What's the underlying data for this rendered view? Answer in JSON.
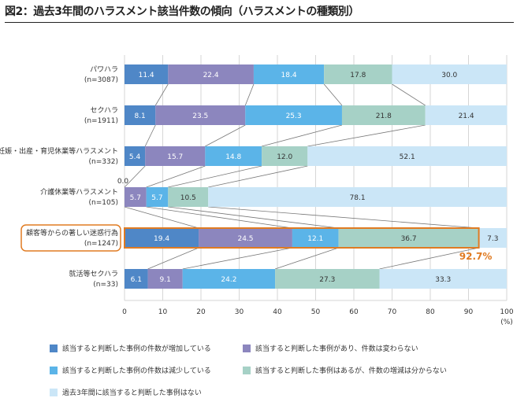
{
  "title": "図2：過去3年間のハラスメント該当件数の傾向（ハラスメントの種類別）",
  "chart_data": {
    "type": "bar",
    "orientation": "horizontal",
    "stacked": true,
    "title": "図2：過去3年間のハラスメント該当件数の傾向（ハラスメントの種類別）",
    "xlabel": "(%)",
    "ylabel": "",
    "xlim": [
      0,
      100
    ],
    "xticks": [
      "0",
      "10",
      "20",
      "30",
      "40",
      "50",
      "60",
      "70",
      "80",
      "90",
      "100"
    ],
    "grid": true,
    "categories": [
      {
        "name": "パワハラ",
        "n": "(n=3087)"
      },
      {
        "name": "セクハラ",
        "n": "(n=1911)"
      },
      {
        "name": "妊娠・出産・育児休業等ハラスメント",
        "n": "(n=332)"
      },
      {
        "name": "介護休業等ハラスメント",
        "n": "(n=105)"
      },
      {
        "name": "顧客等からの著しい迷惑行為",
        "n": "(n=1247)",
        "highlighted": true
      },
      {
        "name": "就活等セクハラ",
        "n": "(n=33)"
      }
    ],
    "series": [
      {
        "name": "該当すると判断した事例の件数が増加している",
        "color": "#4f87c7",
        "label_color": "#ffffff",
        "values": [
          11.4,
          8.1,
          5.4,
          0.0,
          19.4,
          6.1
        ]
      },
      {
        "name": "該当すると判断した事例があり、件数は変わらない",
        "color": "#8c86be",
        "label_color": "#ffffff",
        "values": [
          22.4,
          23.5,
          15.7,
          5.7,
          24.5,
          9.1
        ]
      },
      {
        "name": "該当すると判断した事例の件数は減少している",
        "color": "#5bb4e8",
        "label_color": "#ffffff",
        "values": [
          18.4,
          25.3,
          14.8,
          5.7,
          12.1,
          24.2
        ]
      },
      {
        "name": "該当すると判断した事例はあるが、件数の増減は分からない",
        "color": "#a6d1c6",
        "label_color": "#333333",
        "values": [
          17.8,
          21.8,
          12.0,
          10.5,
          36.7,
          27.3
        ]
      },
      {
        "name": "過去3年間に該当すると判断した事例はない",
        "color": "#cbe6f7",
        "label_color": "#333333",
        "values": [
          30.0,
          21.4,
          52.1,
          78.1,
          7.3,
          33.3
        ]
      }
    ],
    "value_labels": [
      [
        "11.4",
        "22.4",
        "18.4",
        "17.8",
        "30.0"
      ],
      [
        "8.1",
        "23.5",
        "25.3",
        "21.8",
        "21.4"
      ],
      [
        "5.4",
        "15.7",
        "14.8",
        "12.0",
        "52.1"
      ],
      [
        "0.0",
        "5.7",
        "5.7",
        "10.5",
        "78.1"
      ],
      [
        "19.4",
        "24.5",
        "12.1",
        "36.7",
        "7.3"
      ],
      [
        "6.1",
        "9.1",
        "24.2",
        "27.3",
        "33.3"
      ]
    ],
    "annotations": [
      {
        "text": "92.7%",
        "color": "#e07b22",
        "target": "顧客等からの著しい迷惑行為"
      }
    ],
    "highlight_color": "#e07b22",
    "legend": "bottom"
  }
}
